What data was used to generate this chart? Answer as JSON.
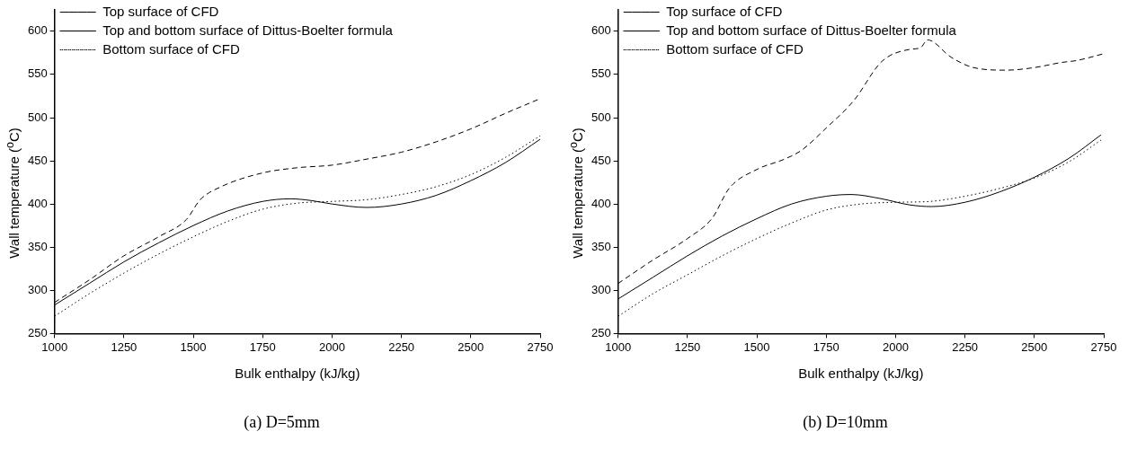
{
  "chart_data": [
    {
      "type": "line",
      "title": "(a) D=5mm",
      "xlabel": "Bulk enthalpy (kJ/kg)",
      "ylabel": "Wall temperature ($^{o}$C)",
      "xlim": [
        1000,
        2750
      ],
      "xticks": [
        1000,
        1250,
        1500,
        1750,
        2000,
        2250,
        2500,
        2750
      ],
      "ylim": [
        250,
        625
      ],
      "yticks": [
        250,
        300,
        350,
        400,
        450,
        500,
        550,
        600
      ],
      "grid": false,
      "legend": "top left",
      "marker": "none",
      "series": [
        {
          "name": "Top surface of CFD",
          "color": "#000000",
          "line_style": "dashed",
          "x": [
            1000,
            1125,
            1250,
            1375,
            1475,
            1525,
            1600,
            1750,
            1875,
            2000,
            2125,
            2250,
            2375,
            2500,
            2625,
            2750
          ],
          "values": [
            286,
            312,
            340,
            362,
            382,
            405,
            420,
            436,
            442,
            445,
            452,
            460,
            472,
            487,
            505,
            522
          ]
        },
        {
          "name": "Top and bottom surface of Dittus-Boelter formula",
          "color": "#000000",
          "line_style": "solid",
          "x": [
            1000,
            1125,
            1250,
            1375,
            1500,
            1625,
            1750,
            1850,
            1925,
            2000,
            2125,
            2250,
            2375,
            2500,
            2625,
            2750
          ],
          "values": [
            283,
            308,
            333,
            355,
            375,
            392,
            403,
            406,
            404,
            400,
            396,
            400,
            410,
            427,
            448,
            475
          ]
        },
        {
          "name": "Bottom surface of CFD",
          "color": "#000000",
          "line_style": "dotted",
          "x": [
            1000,
            1125,
            1250,
            1375,
            1500,
            1625,
            1750,
            1875,
            2000,
            2125,
            2250,
            2375,
            2500,
            2625,
            2750
          ],
          "values": [
            270,
            296,
            320,
            342,
            362,
            380,
            394,
            401,
            403,
            405,
            411,
            420,
            434,
            454,
            479
          ]
        }
      ]
    },
    {
      "type": "line",
      "title": "(b) D=10mm",
      "xlabel": "Bulk enthalpy (kJ/kg)",
      "ylabel": "Wall temperature ($^{o}$C)",
      "xlim": [
        1000,
        2750
      ],
      "xticks": [
        1000,
        1250,
        1500,
        1750,
        2000,
        2250,
        2500,
        2750
      ],
      "ylim": [
        250,
        625
      ],
      "yticks": [
        250,
        300,
        350,
        400,
        450,
        500,
        550,
        600
      ],
      "grid": false,
      "legend": "top left",
      "marker": "none",
      "series": [
        {
          "name": "Top surface of CFD",
          "color": "#000000",
          "line_style": "dashed",
          "x": [
            1000,
            1125,
            1250,
            1340,
            1400,
            1500,
            1600,
            1660,
            1750,
            1850,
            1950,
            2050,
            2090,
            2115,
            2200,
            2280,
            2400,
            2500,
            2600,
            2650,
            2750
          ],
          "values": [
            308,
            335,
            360,
            384,
            418,
            440,
            452,
            462,
            488,
            520,
            565,
            579,
            581,
            590,
            570,
            558,
            555,
            558,
            564,
            566,
            574
          ]
        },
        {
          "name": "Top and bottom surface of Dittus-Boelter formula",
          "color": "#000000",
          "line_style": "solid",
          "x": [
            1000,
            1125,
            1250,
            1375,
            1500,
            1625,
            1750,
            1840,
            1950,
            2050,
            2130,
            2250,
            2375,
            2500,
            2625,
            2740
          ],
          "values": [
            290,
            315,
            340,
            363,
            383,
            400,
            409,
            411,
            406,
            399,
            397,
            402,
            414,
            431,
            453,
            480
          ]
        },
        {
          "name": "Bottom surface of CFD",
          "color": "#000000",
          "line_style": "dotted",
          "x": [
            1000,
            1125,
            1250,
            1375,
            1500,
            1625,
            1750,
            1875,
            2000,
            2125,
            2250,
            2375,
            2500,
            2625,
            2740
          ],
          "values": [
            270,
            296,
            318,
            340,
            360,
            378,
            393,
            400,
            402,
            403,
            409,
            418,
            430,
            449,
            474
          ]
        }
      ]
    }
  ]
}
